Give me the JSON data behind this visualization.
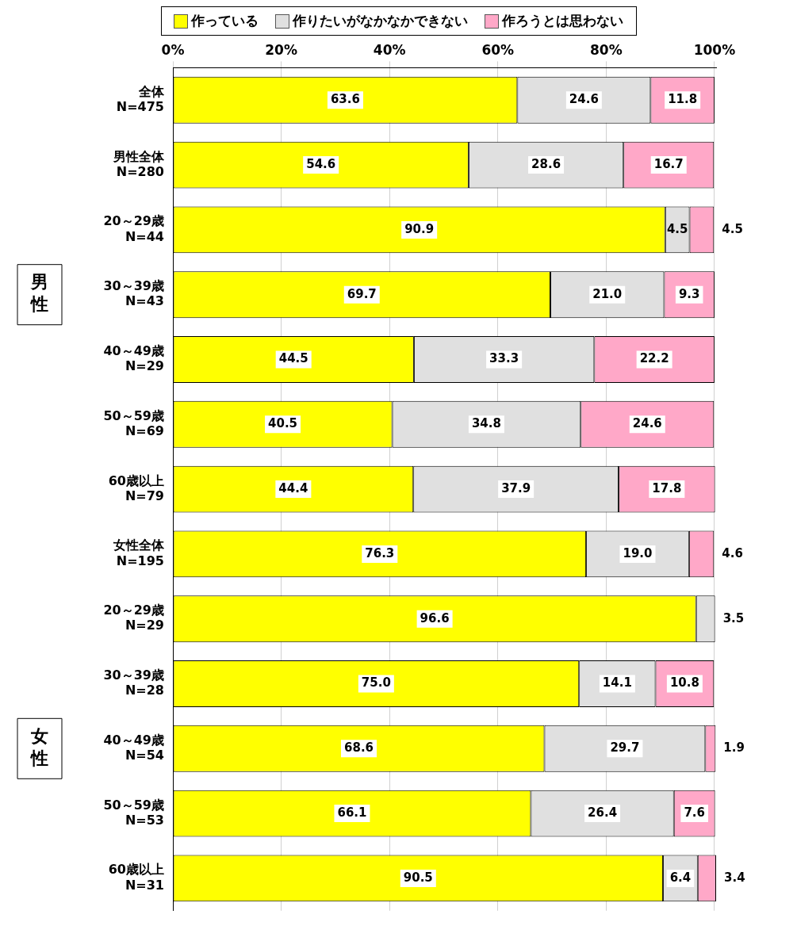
{
  "chart_data": {
    "type": "bar",
    "orientation": "horizontal",
    "stacked": true,
    "categories": [
      "全体\nN=475",
      "男性全体\nN=280",
      "20～29歳\nN=44",
      "30～39歳\nN=43",
      "40～49歳\nN=29",
      "50～59歳\nN=69",
      "60歳以上\nN=79",
      "女性全体\nN=195",
      "20～29歳\nN=29",
      "30～39歳\nN=28",
      "40～49歳\nN=54",
      "50～59歳\nN=53",
      "60歳以上\nN=31"
    ],
    "series": [
      {
        "name": "作っている",
        "color": "#ffff00",
        "values": [
          63.6,
          54.6,
          90.9,
          69.7,
          44.5,
          40.5,
          44.4,
          76.3,
          96.6,
          75.0,
          68.6,
          66.1,
          90.5
        ],
        "value_labels": [
          "63.6",
          "54.6",
          "90.9",
          "69.7",
          "44.5",
          "40.5",
          "44.4",
          "76.3",
          "96.6",
          "75.0",
          "68.6",
          "66.1",
          "90.5"
        ]
      },
      {
        "name": "作りたいがなかなかできない",
        "color": "#e0e0e0",
        "values": [
          24.6,
          28.6,
          4.5,
          21.0,
          33.3,
          34.8,
          37.9,
          19.0,
          3.5,
          14.1,
          29.7,
          26.4,
          6.4
        ],
        "value_labels": [
          "24.6",
          "28.6",
          "4.5",
          "21.0",
          "33.3",
          "34.8",
          "37.9",
          "19.0",
          "3.5",
          "14.1",
          "29.7",
          "26.4",
          "6.4"
        ]
      },
      {
        "name": "作ろうとは思わない",
        "color": "#ffa8c8",
        "values": [
          11.8,
          16.7,
          4.5,
          9.3,
          22.2,
          24.6,
          17.8,
          4.6,
          null,
          10.8,
          1.9,
          7.6,
          3.4
        ],
        "value_labels": [
          "11.8",
          "16.7",
          "4.5",
          "9.3",
          "22.2",
          "24.6",
          "17.8",
          "4.6",
          null,
          "10.8",
          "1.9",
          "7.6",
          "3.4"
        ]
      }
    ],
    "xlim": [
      0,
      100.3
    ],
    "xticks": [
      {
        "value": 0,
        "label": "0%"
      },
      {
        "value": 20,
        "label": "20%"
      },
      {
        "value": 40,
        "label": "40%"
      },
      {
        "value": 60,
        "label": "60%"
      },
      {
        "value": 80,
        "label": "80%"
      },
      {
        "value": 100,
        "label": "100%"
      }
    ],
    "grid": "x",
    "legend": "top",
    "annotations": [
      "男性",
      "女性"
    ]
  }
}
